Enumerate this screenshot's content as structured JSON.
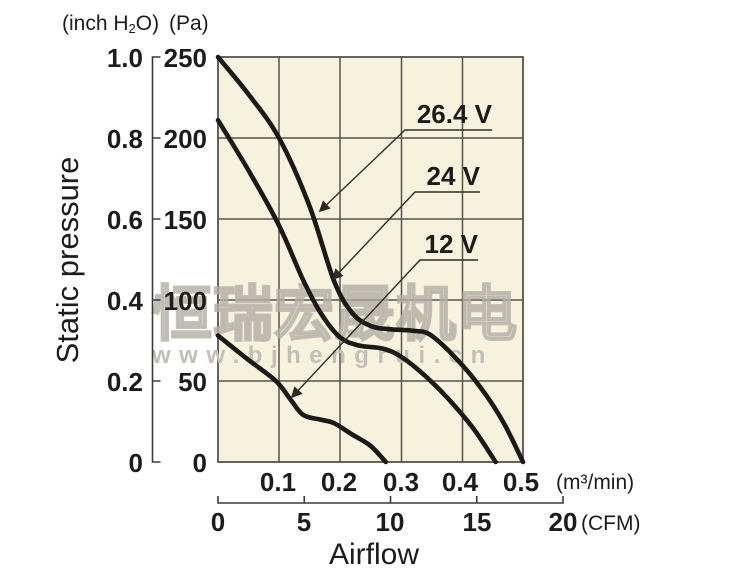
{
  "figure": {
    "y_unit_left": {
      "pre": "(inch H",
      "sub": "2",
      "post": "O)"
    },
    "y_unit_right": "(Pa)",
    "x_unit_primary": "(m³/min)",
    "x_unit_secondary": "(CFM)",
    "y_axis_title": "Static pressure",
    "x_axis_title": "Airflow"
  },
  "watermark": {
    "line1": "恒瑞宏晟机电",
    "line2": "www.bjhengrui.cn"
  },
  "colors": {
    "plot_background": "#f6f2de",
    "grid": "#55534b",
    "curve": "#1b1a16",
    "text": "#1d1c1a",
    "watermark": "#c2bfb6"
  },
  "chart_data": {
    "type": "line",
    "title": "",
    "xlabel": "Airflow",
    "ylabel": "Static pressure",
    "x_unit_primary": "m³/min",
    "x_unit_secondary": "CFM",
    "y_unit_primary": "Pa",
    "y_unit_secondary": "inch H2O",
    "xlim_m3min": [
      0,
      0.5
    ],
    "xlim_cfm": [
      0,
      20
    ],
    "ylim_pa": [
      0,
      250
    ],
    "ylim_inch_h2o": [
      0,
      1.0
    ],
    "grid": true,
    "x_ticks_m3min": [
      "0.1",
      "0.2",
      "0.3",
      "0.4",
      "0.5"
    ],
    "x_ticks_cfm": [
      "0",
      "5",
      "10",
      "15",
      "20"
    ],
    "y_ticks_pa": [
      "250",
      "200",
      "150",
      "100",
      "50",
      "0"
    ],
    "y_ticks_inch": [
      "1.0",
      "0.8",
      "0.6",
      "0.4",
      "0.2",
      "0"
    ],
    "series": [
      {
        "name": "26.4 V",
        "points": [
          [
            0,
            250
          ],
          [
            0.05,
            227
          ],
          [
            0.1,
            200
          ],
          [
            0.15,
            158
          ],
          [
            0.19,
            112
          ],
          [
            0.22,
            92
          ],
          [
            0.25,
            84
          ],
          [
            0.28,
            82
          ],
          [
            0.32,
            81
          ],
          [
            0.35,
            78
          ],
          [
            0.4,
            60
          ],
          [
            0.44,
            41
          ],
          [
            0.47,
            23
          ],
          [
            0.5,
            0
          ]
        ]
      },
      {
        "name": "24 V",
        "points": [
          [
            0,
            211
          ],
          [
            0.05,
            180
          ],
          [
            0.1,
            146
          ],
          [
            0.14,
            112
          ],
          [
            0.17,
            91
          ],
          [
            0.2,
            77
          ],
          [
            0.23,
            72
          ],
          [
            0.27,
            70
          ],
          [
            0.3,
            65
          ],
          [
            0.34,
            53
          ],
          [
            0.38,
            38
          ],
          [
            0.42,
            20
          ],
          [
            0.455,
            0
          ]
        ]
      },
      {
        "name": "12 V",
        "points": [
          [
            0,
            78
          ],
          [
            0.05,
            63
          ],
          [
            0.095,
            50
          ],
          [
            0.12,
            38
          ],
          [
            0.14,
            29
          ],
          [
            0.17,
            26
          ],
          [
            0.19,
            24
          ],
          [
            0.22,
            17
          ],
          [
            0.25,
            10
          ],
          [
            0.275,
            0
          ]
        ]
      }
    ]
  }
}
